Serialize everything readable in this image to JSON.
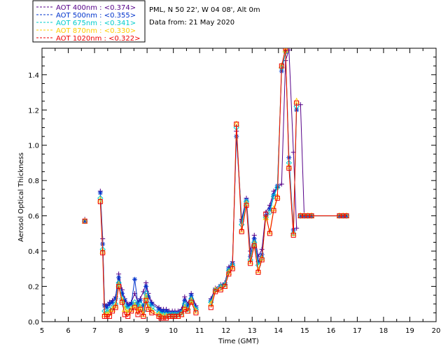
{
  "info": {
    "location": "PML, N 50 22', W 04 08', Alt 0m",
    "date": "Data from: 21 May 2020"
  },
  "chart_data": {
    "type": "line",
    "xlabel": "Time (GMT)",
    "ylabel": "Aerosol Optical Thickness",
    "xlim": [
      5,
      20
    ],
    "ylim": [
      0,
      1.55
    ],
    "x_ticks": [
      "5",
      "6",
      "7",
      "8",
      "9",
      "10",
      "11",
      "12",
      "13",
      "14",
      "15",
      "16",
      "17",
      "18",
      "19",
      "20"
    ],
    "y_ticks": [
      "0.0",
      "0.2",
      "0.4",
      "0.6",
      "0.8",
      "1.0",
      "1.2",
      "1.4"
    ],
    "x": [
      6.63,
      7.22,
      7.31,
      7.38,
      7.47,
      7.57,
      7.68,
      7.8,
      7.92,
      8.05,
      8.15,
      8.27,
      8.4,
      8.53,
      8.65,
      8.74,
      8.86,
      8.96,
      9.05,
      9.18,
      9.45,
      9.53,
      9.62,
      9.73,
      9.84,
      9.96,
      10.06,
      10.18,
      10.31,
      10.43,
      10.55,
      10.68,
      10.86,
      11.43,
      11.6,
      11.8,
      11.96,
      12.11,
      12.25,
      12.4,
      12.6,
      12.78,
      12.93,
      13.08,
      13.23,
      13.37,
      13.52,
      13.67,
      13.82,
      13.96,
      14.12,
      14.27,
      14.4,
      14.57,
      14.69,
      14.84,
      14.98,
      15.12,
      15.26,
      16.32,
      16.46,
      16.59
    ],
    "series": [
      {
        "name": "AOT  400nm : <0.374>",
        "color": "#550088",
        "marker": "plus",
        "values": [
          0.58,
          0.74,
          0.47,
          0.1,
          0.09,
          0.11,
          0.12,
          0.14,
          0.27,
          0.18,
          0.13,
          0.1,
          0.11,
          0.16,
          0.11,
          0.13,
          0.17,
          0.22,
          0.16,
          0.11,
          0.08,
          0.07,
          0.07,
          0.07,
          0.06,
          0.06,
          0.06,
          0.06,
          0.07,
          0.14,
          0.1,
          0.16,
          0.09,
          0.13,
          0.19,
          0.21,
          0.22,
          0.31,
          0.34,
          1.08,
          0.58,
          0.7,
          0.4,
          0.49,
          0.37,
          0.41,
          0.62,
          0.66,
          0.74,
          0.76,
          0.78,
          1.48,
          1.54,
          0.96,
          0.53,
          1.23,
          0.6,
          0.6,
          0.6,
          0.6,
          0.6,
          0.6
        ]
      },
      {
        "name": "AOT  500nm : <0.355>",
        "color": "#0033cc",
        "marker": "star",
        "values": [
          0.57,
          0.73,
          0.44,
          0.09,
          0.08,
          0.1,
          0.11,
          0.13,
          0.25,
          0.16,
          0.12,
          0.09,
          0.1,
          0.24,
          0.1,
          0.12,
          0.09,
          0.2,
          0.14,
          0.1,
          0.07,
          0.06,
          0.06,
          0.06,
          0.05,
          0.05,
          0.05,
          0.05,
          0.06,
          0.12,
          0.09,
          0.15,
          0.08,
          0.12,
          0.18,
          0.2,
          0.21,
          0.3,
          0.33,
          1.05,
          0.57,
          0.69,
          0.37,
          0.47,
          0.34,
          0.38,
          0.6,
          0.64,
          0.72,
          0.77,
          1.42,
          1.53,
          0.93,
          0.52,
          1.2,
          0.6,
          0.6,
          0.6,
          0.6,
          0.6,
          0.6,
          0.6
        ]
      },
      {
        "name": "AOT  675nm : <0.341>",
        "color": "#00cccc",
        "marker": "diamond",
        "values": [
          0.57,
          0.7,
          0.41,
          0.06,
          0.05,
          0.07,
          0.08,
          0.1,
          0.22,
          0.13,
          0.09,
          0.07,
          0.08,
          0.11,
          0.08,
          0.1,
          0.06,
          0.16,
          0.1,
          0.08,
          0.05,
          0.04,
          0.04,
          0.04,
          0.04,
          0.04,
          0.04,
          0.04,
          0.05,
          0.1,
          0.07,
          0.13,
          0.07,
          0.11,
          0.18,
          0.2,
          0.21,
          0.29,
          0.32,
          1.1,
          0.55,
          0.68,
          0.35,
          0.45,
          0.32,
          0.36,
          0.59,
          0.62,
          0.71,
          0.76,
          1.44,
          1.53,
          0.9,
          0.5,
          1.22,
          0.6,
          0.6,
          0.6,
          0.6,
          0.6,
          0.6,
          0.6
        ]
      },
      {
        "name": "AOT  870nm : <0.330>",
        "color": "#ffcc00",
        "marker": "triangle",
        "values": [
          0.57,
          0.69,
          0.4,
          0.04,
          0.04,
          0.05,
          0.07,
          0.09,
          0.21,
          0.12,
          0.07,
          0.05,
          0.07,
          0.09,
          0.06,
          0.08,
          0.04,
          0.14,
          0.08,
          0.06,
          0.04,
          0.03,
          0.03,
          0.03,
          0.03,
          0.03,
          0.03,
          0.03,
          0.04,
          0.08,
          0.06,
          0.12,
          0.06,
          0.1,
          0.18,
          0.19,
          0.2,
          0.28,
          0.31,
          1.12,
          0.52,
          0.67,
          0.34,
          0.44,
          0.29,
          0.36,
          0.59,
          0.51,
          0.64,
          0.71,
          1.45,
          1.54,
          0.88,
          0.5,
          1.25,
          0.6,
          0.6,
          0.6,
          0.6,
          0.6,
          0.6,
          0.6
        ]
      },
      {
        "name": "AOT 1020nm : <0.322>",
        "color": "#ee0000",
        "marker": "square",
        "values": [
          0.57,
          0.68,
          0.39,
          0.03,
          0.03,
          0.03,
          0.06,
          0.08,
          0.2,
          0.11,
          0.04,
          0.03,
          0.06,
          0.08,
          0.04,
          0.07,
          0.03,
          0.12,
          0.07,
          0.05,
          0.03,
          0.02,
          0.02,
          0.02,
          0.03,
          0.03,
          0.03,
          0.03,
          0.04,
          0.07,
          0.06,
          0.11,
          0.05,
          0.08,
          0.17,
          0.18,
          0.2,
          0.27,
          0.3,
          1.12,
          0.51,
          0.66,
          0.33,
          0.43,
          0.28,
          0.35,
          0.61,
          0.5,
          0.63,
          0.7,
          1.45,
          1.55,
          0.87,
          0.49,
          1.24,
          0.6,
          0.6,
          0.6,
          0.6,
          0.6,
          0.6,
          0.6
        ]
      }
    ]
  }
}
